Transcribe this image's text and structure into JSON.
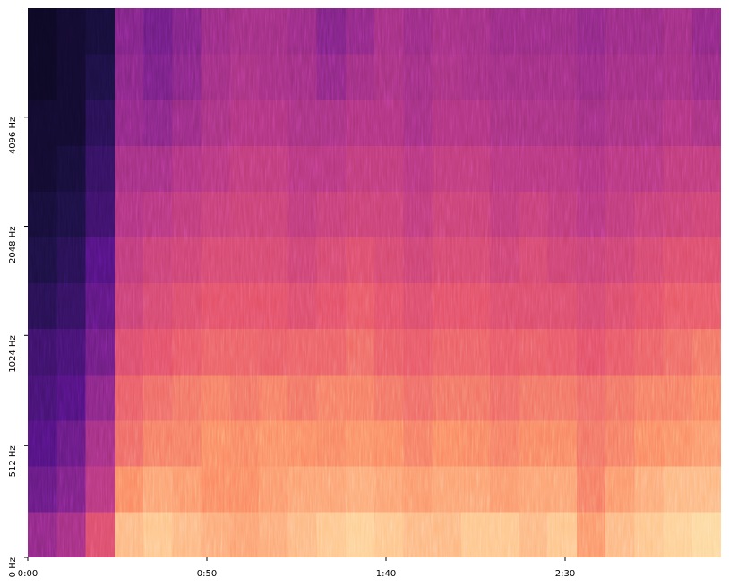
{
  "chart_data": {
    "type": "heatmap",
    "colormap": "magma",
    "zlim": [
      0,
      100
    ],
    "xlim": [
      0,
      193.5
    ],
    "xticks": [
      {
        "value": 0,
        "label": "0:00"
      },
      {
        "value": 50,
        "label": "0:50"
      },
      {
        "value": 100,
        "label": "1:40"
      },
      {
        "value": 150,
        "label": "2:30"
      }
    ],
    "ylim": [
      0,
      8192
    ],
    "yscale": "symlog",
    "linthresh": 1000,
    "yticks": [
      {
        "value": 0,
        "label": "0 Hz"
      },
      {
        "value": 512,
        "label": "512 Hz"
      },
      {
        "value": 1024,
        "label": "1024 Hz"
      },
      {
        "value": 2048,
        "label": "2048 Hz"
      },
      {
        "value": 4096,
        "label": "4096 Hz"
      }
    ],
    "values": [
      [
        40,
        45,
        60,
        85,
        88,
        85,
        82,
        80,
        82,
        85,
        88,
        90,
        88,
        85,
        85,
        88,
        88,
        85,
        88,
        78,
        85,
        88,
        90,
        92
      ],
      [
        30,
        35,
        50,
        75,
        80,
        78,
        75,
        75,
        78,
        80,
        80,
        82,
        80,
        78,
        80,
        80,
        78,
        80,
        80,
        72,
        78,
        82,
        85,
        85
      ],
      [
        25,
        30,
        45,
        68,
        72,
        72,
        75,
        74,
        76,
        75,
        74,
        76,
        75,
        72,
        75,
        74,
        72,
        74,
        74,
        70,
        72,
        75,
        76,
        78
      ],
      [
        22,
        25,
        38,
        65,
        68,
        70,
        72,
        70,
        72,
        70,
        72,
        72,
        70,
        68,
        70,
        70,
        68,
        70,
        70,
        68,
        70,
        72,
        72,
        74
      ],
      [
        20,
        22,
        32,
        60,
        62,
        64,
        66,
        66,
        65,
        66,
        66,
        68,
        65,
        64,
        66,
        66,
        64,
        65,
        64,
        62,
        64,
        66,
        68,
        70
      ],
      [
        15,
        18,
        28,
        55,
        58,
        60,
        62,
        62,
        62,
        60,
        62,
        64,
        62,
        60,
        62,
        62,
        60,
        60,
        60,
        58,
        60,
        62,
        64,
        64
      ],
      [
        12,
        15,
        25,
        52,
        55,
        56,
        58,
        58,
        58,
        56,
        58,
        60,
        58,
        56,
        58,
        58,
        56,
        58,
        56,
        55,
        56,
        58,
        60,
        60
      ],
      [
        10,
        12,
        20,
        48,
        50,
        52,
        54,
        55,
        55,
        52,
        54,
        55,
        55,
        52,
        55,
        55,
        52,
        54,
        52,
        50,
        52,
        54,
        55,
        56
      ],
      [
        8,
        10,
        18,
        45,
        45,
        48,
        50,
        52,
        52,
        50,
        50,
        52,
        52,
        50,
        52,
        52,
        50,
        50,
        50,
        48,
        50,
        50,
        52,
        52
      ],
      [
        8,
        8,
        15,
        40,
        38,
        42,
        46,
        48,
        48,
        46,
        46,
        48,
        48,
        45,
        48,
        48,
        46,
        46,
        46,
        44,
        46,
        46,
        48,
        46
      ],
      [
        6,
        8,
        12,
        38,
        34,
        38,
        44,
        46,
        45,
        44,
        40,
        44,
        46,
        44,
        46,
        45,
        44,
        44,
        44,
        42,
        44,
        44,
        45,
        42
      ],
      [
        6,
        8,
        10,
        36,
        32,
        36,
        42,
        44,
        44,
        42,
        36,
        40,
        45,
        42,
        45,
        44,
        42,
        42,
        42,
        40,
        42,
        42,
        44,
        40
      ]
    ]
  }
}
